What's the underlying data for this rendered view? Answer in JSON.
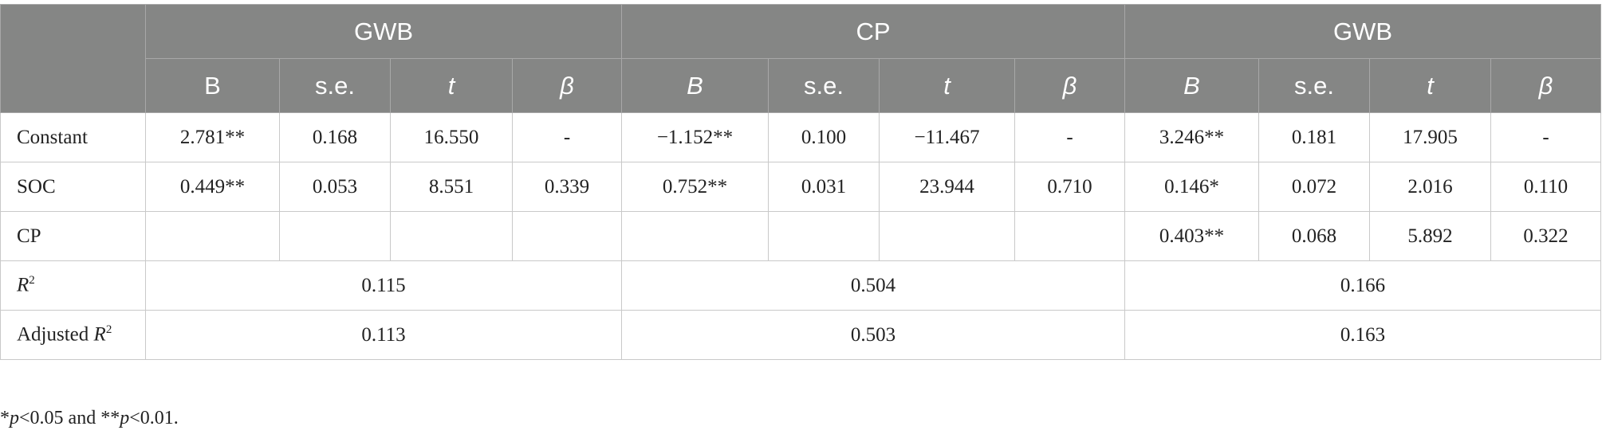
{
  "header": {
    "groups": [
      "GWB",
      "CP",
      "GWB"
    ],
    "columns": [
      "B",
      "s.e.",
      "t",
      "β",
      "B",
      "s.e.",
      "t",
      "β",
      "B",
      "s.e.",
      "t",
      "β"
    ]
  },
  "rows": [
    {
      "label": {
        "main": "Constant"
      },
      "cells": [
        "2.781**",
        "0.168",
        "16.550",
        "-",
        "−1.152**",
        "0.100",
        "−11.467",
        "-",
        "3.246**",
        "0.181",
        "17.905",
        "-"
      ]
    },
    {
      "label": {
        "main": "SOC"
      },
      "cells": [
        "0.449**",
        "0.053",
        "8.551",
        "0.339",
        "0.752**",
        "0.031",
        "23.944",
        "0.710",
        "0.146*",
        "0.072",
        "2.016",
        "0.110"
      ]
    },
    {
      "label": {
        "main": "CP"
      },
      "cells": [
        null,
        null,
        null,
        null,
        null,
        null,
        null,
        null,
        "0.403**",
        "0.068",
        "5.892",
        "0.322"
      ]
    },
    {
      "label": {
        "italic": "R",
        "sup": "2"
      },
      "merged": [
        "0.115",
        "0.504",
        "0.166"
      ]
    },
    {
      "label": {
        "main": "Adjusted ",
        "italic": "R",
        "sup": "2"
      },
      "merged": [
        "0.113",
        "0.503",
        "0.163"
      ]
    }
  ],
  "footnote": [
    "*",
    "p",
    "<0.05 and **",
    "p",
    "<0.01."
  ]
}
